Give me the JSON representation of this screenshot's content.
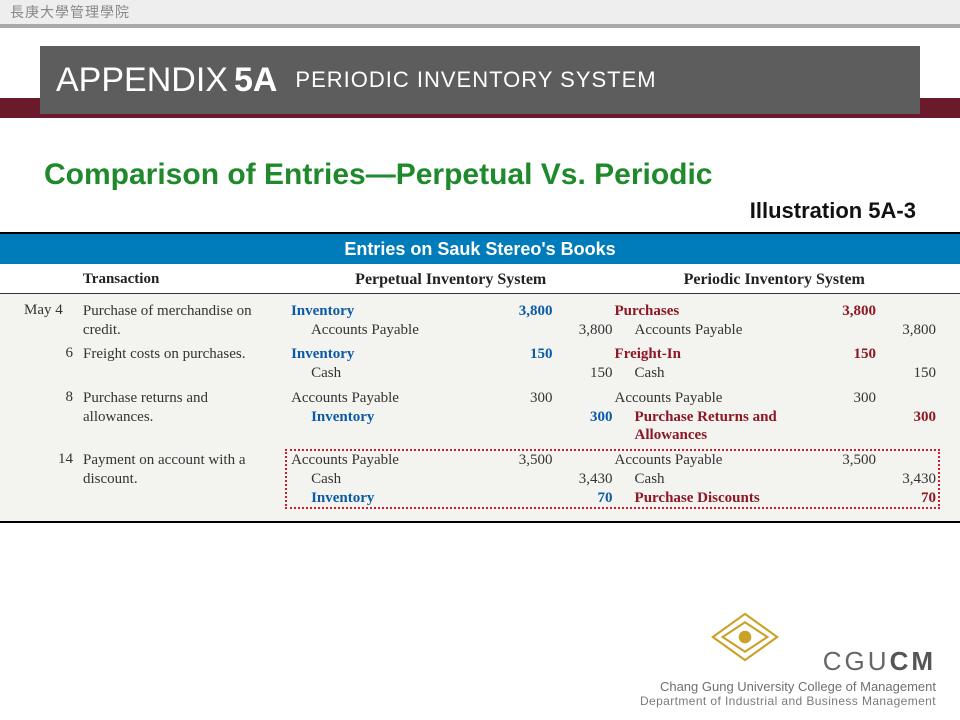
{
  "topstrip": {
    "text": "長庚大學管理學院"
  },
  "banner": {
    "appendix_word": "APPENDIX",
    "appendix_num": "5A",
    "subtitle": "PERIODIC INVENTORY SYSTEM"
  },
  "headline": "Comparison of Entries—Perpetual Vs. Periodic",
  "illustration_label": "Illustration 5A-3",
  "bluebar": "Entries on Sauk Stereo's Books",
  "columns": {
    "transaction": "Transaction",
    "perpetual": "Perpetual Inventory System",
    "periodic": "Periodic Inventory System"
  },
  "month": "May",
  "rows": [
    {
      "day": "4",
      "transaction": "Purchase of merchandise on credit.",
      "perpetual": [
        {
          "account": "Inventory",
          "style": "blue",
          "debit": "3,800",
          "credit": ""
        },
        {
          "account": "Accounts Payable",
          "style": "plain",
          "indent": true,
          "debit": "",
          "credit": "3,800"
        }
      ],
      "periodic": [
        {
          "account": "Purchases",
          "style": "maroon",
          "debit": "3,800",
          "credit": ""
        },
        {
          "account": "Accounts Payable",
          "style": "plain",
          "indent": true,
          "debit": "",
          "credit": "3,800"
        }
      ]
    },
    {
      "day": "6",
      "transaction": "Freight costs on purchases.",
      "perpetual": [
        {
          "account": "Inventory",
          "style": "blue",
          "debit": "150",
          "credit": ""
        },
        {
          "account": "Cash",
          "style": "plain",
          "indent": true,
          "debit": "",
          "credit": "150"
        }
      ],
      "periodic": [
        {
          "account": "Freight-In",
          "style": "maroon",
          "debit": "150",
          "credit": ""
        },
        {
          "account": "Cash",
          "style": "plain",
          "indent": true,
          "debit": "",
          "credit": "150"
        }
      ]
    },
    {
      "day": "8",
      "transaction": "Purchase returns and allowances.",
      "perpetual": [
        {
          "account": "Accounts Payable",
          "style": "plain",
          "debit": "300",
          "credit": ""
        },
        {
          "account": "Inventory",
          "style": "blue",
          "indent": true,
          "debit": "",
          "credit": "300"
        }
      ],
      "periodic": [
        {
          "account": "Accounts Payable",
          "style": "plain",
          "debit": "300",
          "credit": ""
        },
        {
          "account": "Purchase Returns and Allowances",
          "style": "maroon",
          "indent": true,
          "debit": "",
          "credit": "300"
        }
      ]
    },
    {
      "day": "14",
      "transaction": "Payment on account with a discount.",
      "perpetual": [
        {
          "account": "Accounts Payable",
          "style": "plain",
          "debit": "3,500",
          "credit": ""
        },
        {
          "account": "Cash",
          "style": "plain",
          "indent": true,
          "debit": "",
          "credit": "3,430"
        },
        {
          "account": "Inventory",
          "style": "blue",
          "indent": true,
          "debit": "",
          "credit": "70"
        }
      ],
      "periodic": [
        {
          "account": "Accounts Payable",
          "style": "plain",
          "debit": "3,500",
          "credit": ""
        },
        {
          "account": "Cash",
          "style": "plain",
          "indent": true,
          "debit": "",
          "credit": "3,430"
        },
        {
          "account": "Purchase Discounts",
          "style": "maroon",
          "indent": true,
          "debit": "",
          "credit": "70"
        }
      ]
    }
  ],
  "footer": {
    "brand_light": "CGU",
    "brand_bold": "CM",
    "line1": "Chang Gung University College of Management",
    "line2": "Department of Industrial and Business Management"
  },
  "colors": {
    "blue_text": "#0b5aa6",
    "maroon_text": "#8d1724",
    "bluebar_bg": "#007cba",
    "maroon_bar": "#6a1a2a",
    "gray_box": "#5d5d5d",
    "headline": "#1f8a2c",
    "table_bg": "#f3f4ef",
    "dot_border": "#c9202f"
  }
}
